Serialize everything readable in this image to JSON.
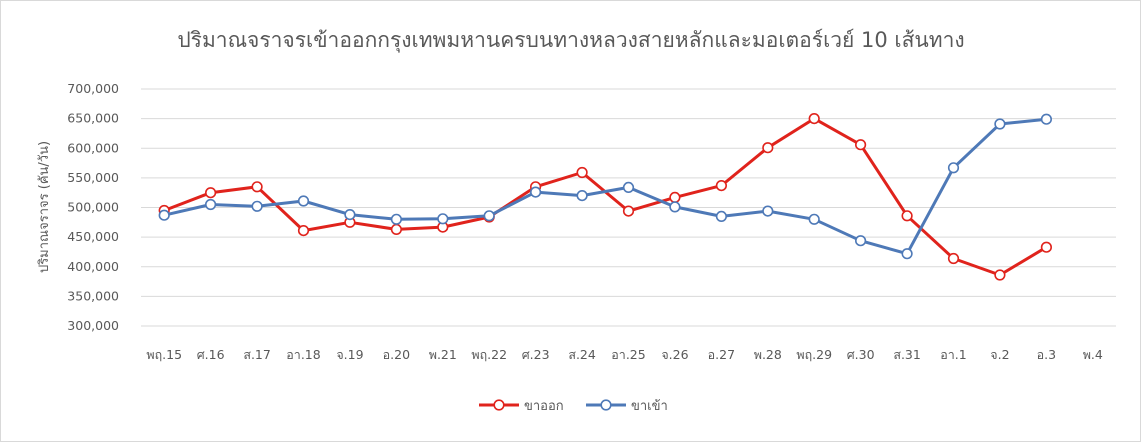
{
  "chart_data": {
    "type": "line",
    "title": "ปริมาณจราจรเข้าออกกรุงเทพมหานครบนทางหลวงสายหลักและมอเตอร์เวย์ 10 เส้นทาง",
    "xlabel": "",
    "ylabel": "ปริมาณจราจร (คัน/วัน)",
    "ylim": [
      300000,
      700000
    ],
    "yticks": [
      "300,000",
      "350,000",
      "400,000",
      "450,000",
      "500,000",
      "550,000",
      "600,000",
      "650,000",
      "700,000"
    ],
    "categories": [
      "พฤ.15",
      "ศ.16",
      "ส.17",
      "อา.18",
      "จ.19",
      "อ.20",
      "พ.21",
      "พฤ.22",
      "ศ.23",
      "ส.24",
      "อา.25",
      "จ.26",
      "อ.27",
      "พ.28",
      "พฤ.29",
      "ศ.30",
      "ส.31",
      "อา.1",
      "จ.2",
      "อ.3",
      "พ.4"
    ],
    "series": [
      {
        "name": "ขาออก",
        "color": "#e0231c",
        "values": [
          495000,
          525000,
          535000,
          461000,
          475000,
          463000,
          467000,
          484000,
          535000,
          559000,
          494000,
          517000,
          537000,
          601000,
          650000,
          606000,
          486000,
          414000,
          386000,
          433000,
          null
        ]
      },
      {
        "name": "ขาเข้า",
        "color": "#4e79b7",
        "values": [
          487000,
          505000,
          502000,
          511000,
          488000,
          480000,
          481000,
          486000,
          526000,
          520000,
          534000,
          501000,
          485000,
          494000,
          480000,
          444000,
          422000,
          567000,
          641000,
          649000,
          null
        ]
      }
    ],
    "legend_position": "bottom",
    "grid": true
  }
}
